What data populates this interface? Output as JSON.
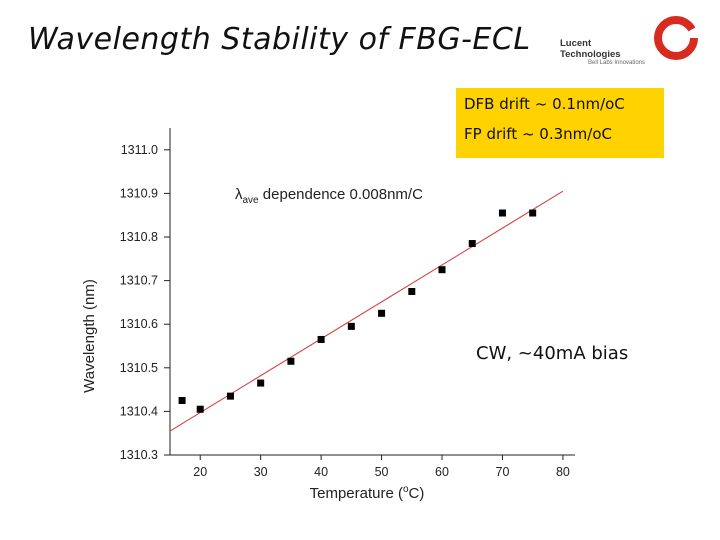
{
  "slide": {
    "title": "Wavelength Stability of FBG-ECL",
    "logo_name": "Lucent Technologies",
    "logo_tagline": "Bell Labs Innovations"
  },
  "notes": {
    "dfb": "DFB drift ~ 0.1nm/oC",
    "fp": "FP drift ~ 0.3nm/oC",
    "bias": "CW, ~40mA bias"
  },
  "chart_data": {
    "type": "scatter",
    "xlabel": "Temperature (oC)",
    "ylabel": "Wavelength (nm)",
    "xlim": [
      15,
      82
    ],
    "ylim": [
      1310.3,
      1311.05
    ],
    "xticks": [
      20,
      30,
      40,
      50,
      60,
      70,
      80
    ],
    "yticks": [
      1310.3,
      1310.4,
      1310.5,
      1310.6,
      1310.7,
      1310.8,
      1310.9,
      1311.0
    ],
    "annotation": "λave dependence 0.008nm/C",
    "series": [
      {
        "color": "#000000",
        "x": [
          17,
          20,
          25,
          30,
          35,
          40,
          45,
          50,
          55,
          60,
          65,
          70,
          75
        ],
        "y": [
          1310.425,
          1310.405,
          1310.435,
          1310.465,
          1310.515,
          1310.565,
          1310.595,
          1310.625,
          1310.675,
          1310.725,
          1310.785,
          1310.855,
          1310.855
        ]
      }
    ],
    "fit_line": {
      "color": "#d63a3a",
      "x": [
        15,
        80
      ],
      "y": [
        1310.355,
        1310.905
      ]
    },
    "grid": false
  }
}
